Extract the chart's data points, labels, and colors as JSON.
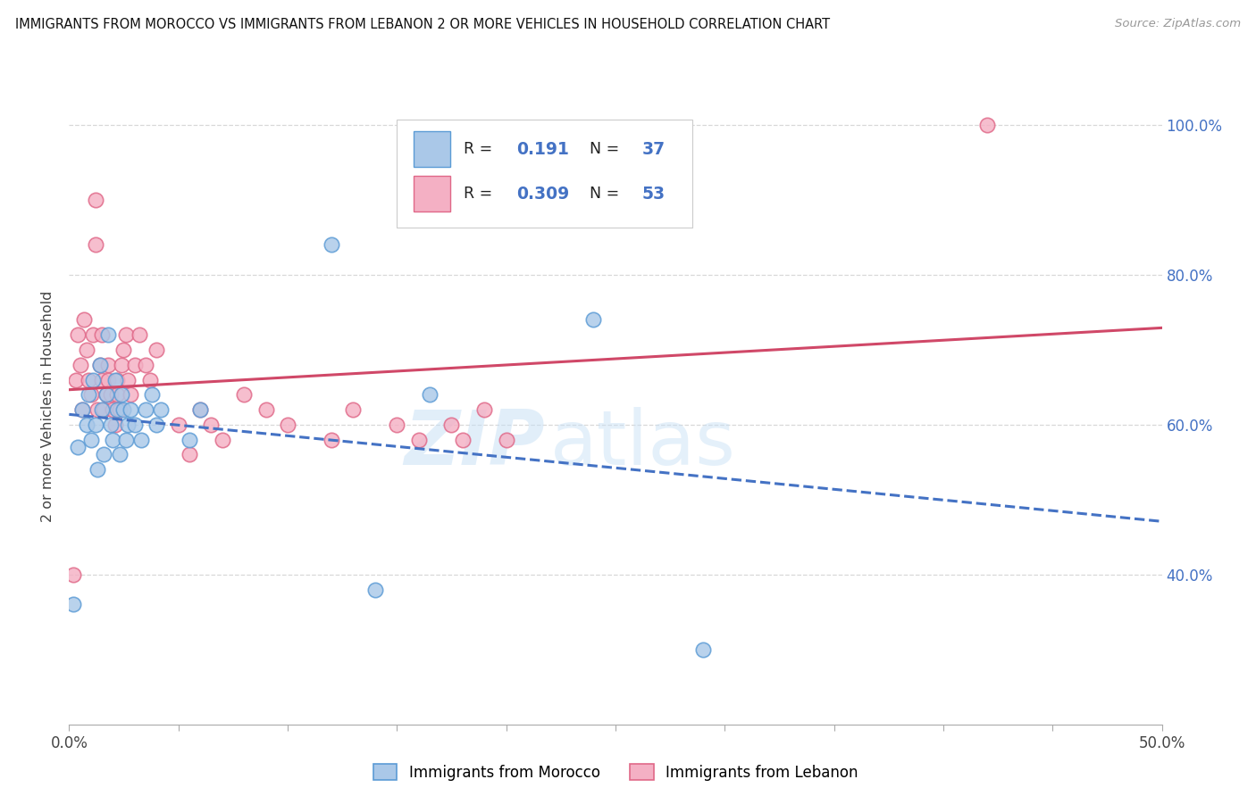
{
  "title": "IMMIGRANTS FROM MOROCCO VS IMMIGRANTS FROM LEBANON 2 OR MORE VEHICLES IN HOUSEHOLD CORRELATION CHART",
  "source": "Source: ZipAtlas.com",
  "ylabel": "2 or more Vehicles in Household",
  "xmin": 0.0,
  "xmax": 0.5,
  "ymin": 0.2,
  "ymax": 1.05,
  "morocco_R": 0.191,
  "morocco_N": 37,
  "lebanon_R": 0.309,
  "lebanon_N": 53,
  "morocco_color": "#aac8e8",
  "morocco_edge": "#5b9bd5",
  "lebanon_color": "#f4b0c4",
  "lebanon_edge": "#e06888",
  "morocco_line_color": "#4472c4",
  "lebanon_line_color": "#d04868",
  "watermark_color_zip": "#c5dff5",
  "watermark_color_atlas": "#c5dff5",
  "legend_label_morocco": "Immigrants from Morocco",
  "legend_label_lebanon": "Immigrants from Lebanon",
  "morocco_x": [
    0.002,
    0.004,
    0.006,
    0.008,
    0.009,
    0.01,
    0.011,
    0.012,
    0.013,
    0.014,
    0.015,
    0.016,
    0.017,
    0.018,
    0.019,
    0.02,
    0.021,
    0.022,
    0.023,
    0.024,
    0.025,
    0.026,
    0.027,
    0.028,
    0.03,
    0.033,
    0.035,
    0.038,
    0.04,
    0.042,
    0.055,
    0.06,
    0.12,
    0.14,
    0.165,
    0.24,
    0.29
  ],
  "morocco_y": [
    0.36,
    0.57,
    0.62,
    0.6,
    0.64,
    0.58,
    0.66,
    0.6,
    0.54,
    0.68,
    0.62,
    0.56,
    0.64,
    0.72,
    0.6,
    0.58,
    0.66,
    0.62,
    0.56,
    0.64,
    0.62,
    0.58,
    0.6,
    0.62,
    0.6,
    0.58,
    0.62,
    0.64,
    0.6,
    0.62,
    0.58,
    0.62,
    0.84,
    0.38,
    0.64,
    0.74,
    0.3
  ],
  "lebanon_x": [
    0.002,
    0.003,
    0.004,
    0.005,
    0.006,
    0.007,
    0.008,
    0.009,
    0.01,
    0.011,
    0.012,
    0.012,
    0.013,
    0.014,
    0.015,
    0.015,
    0.016,
    0.017,
    0.018,
    0.018,
    0.019,
    0.02,
    0.021,
    0.022,
    0.022,
    0.023,
    0.024,
    0.025,
    0.026,
    0.027,
    0.028,
    0.03,
    0.032,
    0.035,
    0.037,
    0.04,
    0.05,
    0.055,
    0.06,
    0.065,
    0.07,
    0.08,
    0.09,
    0.1,
    0.12,
    0.13,
    0.15,
    0.16,
    0.175,
    0.18,
    0.19,
    0.2,
    0.42
  ],
  "lebanon_y": [
    0.4,
    0.66,
    0.72,
    0.68,
    0.62,
    0.74,
    0.7,
    0.66,
    0.64,
    0.72,
    0.84,
    0.9,
    0.62,
    0.68,
    0.66,
    0.72,
    0.62,
    0.64,
    0.68,
    0.66,
    0.64,
    0.62,
    0.6,
    0.66,
    0.64,
    0.62,
    0.68,
    0.7,
    0.72,
    0.66,
    0.64,
    0.68,
    0.72,
    0.68,
    0.66,
    0.7,
    0.6,
    0.56,
    0.62,
    0.6,
    0.58,
    0.64,
    0.62,
    0.6,
    0.58,
    0.62,
    0.6,
    0.58,
    0.6,
    0.58,
    0.62,
    0.58,
    1.0
  ],
  "ytick_vals": [
    0.4,
    0.6,
    0.8,
    1.0
  ],
  "xtick_count": 10
}
